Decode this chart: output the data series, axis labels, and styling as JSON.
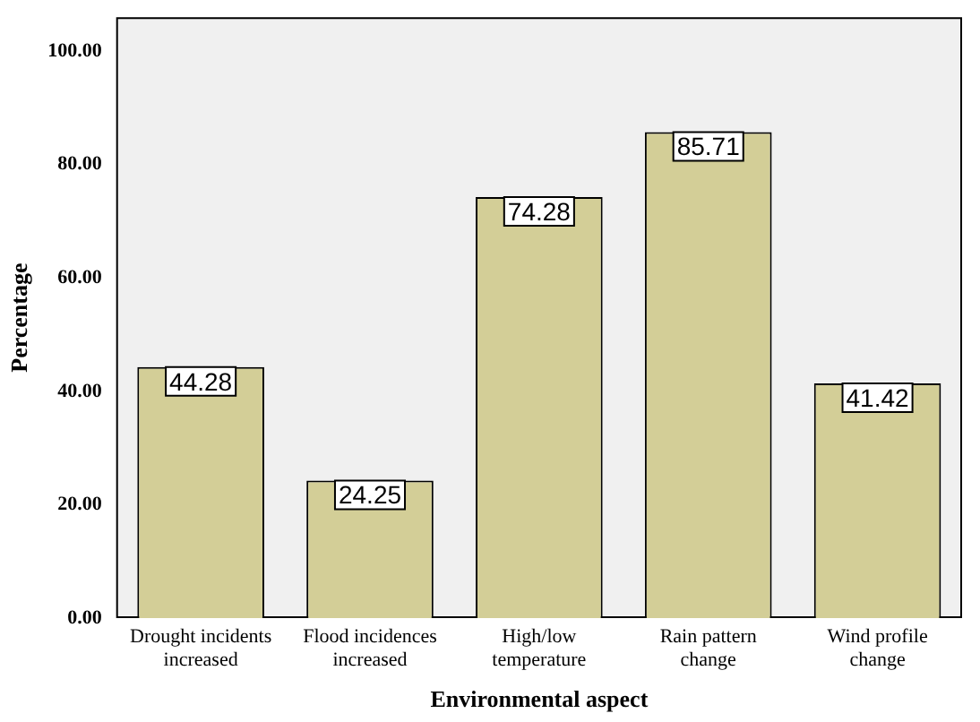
{
  "chart_data": {
    "type": "bar",
    "xlabel": "Environmental aspect",
    "ylabel": "Percentage",
    "categories": [
      "Drought incidents increased",
      "Flood incidences increased",
      "High/low temperature",
      "Rain pattern change",
      "Wind profile change"
    ],
    "values": [
      44.28,
      24.25,
      74.28,
      85.71,
      41.42
    ],
    "color": "#d3ce97",
    "ylim": [
      0,
      106
    ],
    "yticks": [
      {
        "value": 0,
        "label": "0.00"
      },
      {
        "value": 20,
        "label": "20.00"
      },
      {
        "value": 40,
        "label": "40.00"
      },
      {
        "value": 60,
        "label": "60.00"
      },
      {
        "value": 80,
        "label": "80.00"
      },
      {
        "value": 100,
        "label": "100.00"
      }
    ],
    "grid": false,
    "legend": false,
    "data_labels": true
  }
}
